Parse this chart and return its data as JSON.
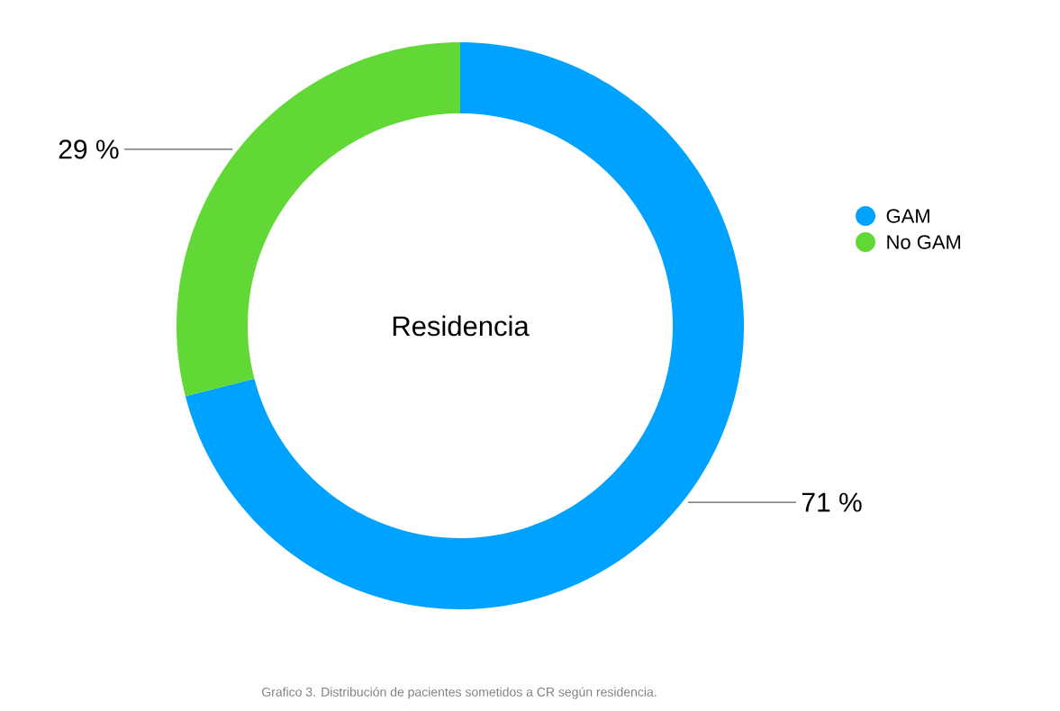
{
  "chart_data": {
    "type": "donut",
    "title": "Residencia",
    "categories": [
      "GAM",
      "No GAM"
    ],
    "values": [
      71,
      29
    ],
    "colors": [
      "#00a2ff",
      "#62d836"
    ],
    "value_labels": [
      "71 %",
      "29 %"
    ],
    "legend": "right",
    "annotations": [
      "Grafico 3. Distribución de pacientes sometidos a CR según residencia."
    ]
  }
}
